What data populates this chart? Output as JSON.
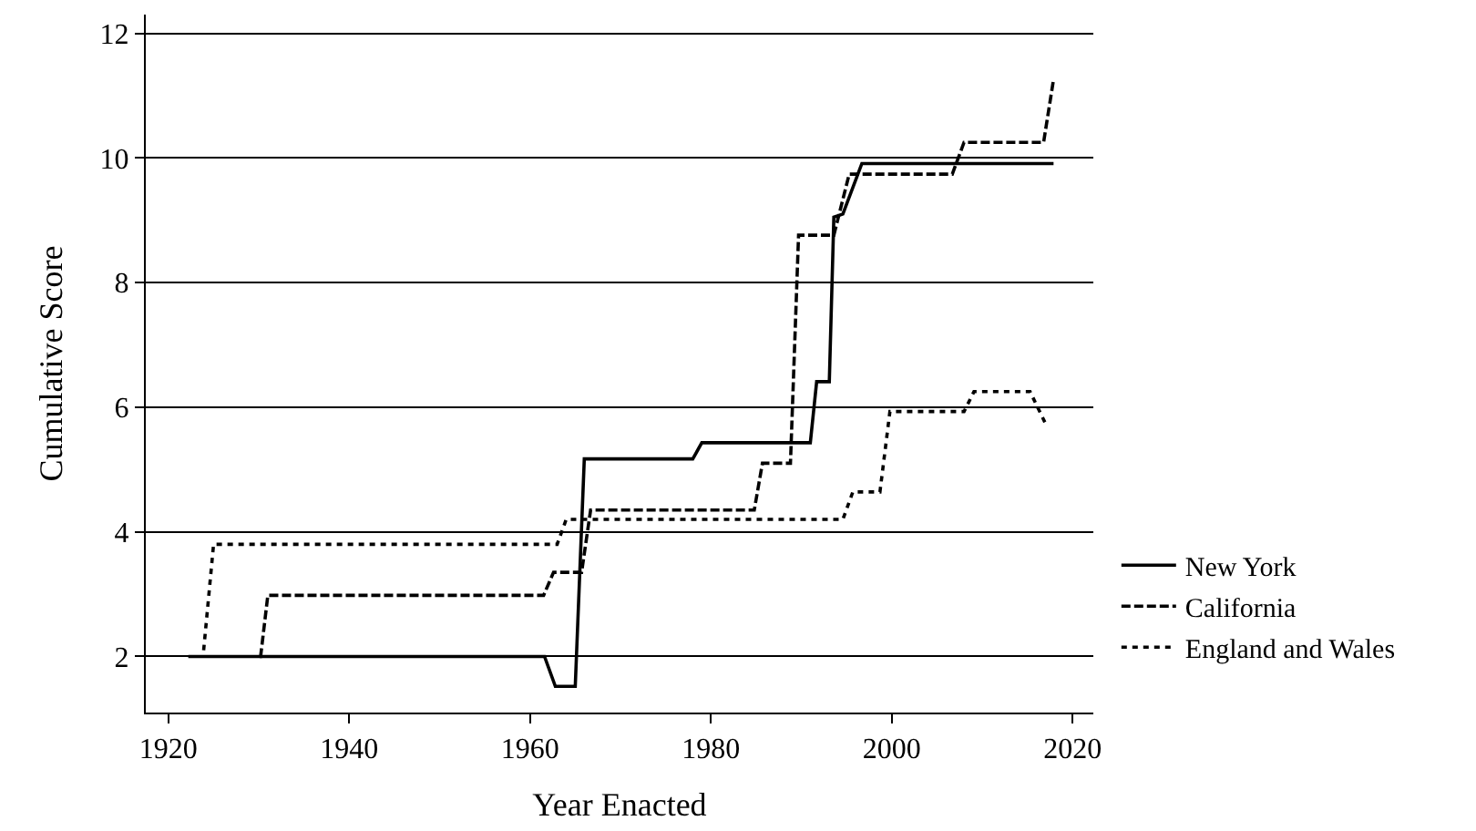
{
  "chart_data": {
    "type": "line",
    "xlabel": "Year Enacted",
    "ylabel": "Cumulative Score",
    "xlim": [
      1917.5,
      2022.3
    ],
    "ylim": [
      1.1,
      12.3
    ],
    "xticks": [
      1920,
      1940,
      1960,
      1980,
      2000,
      2020
    ],
    "yticks": [
      2,
      4,
      6,
      8,
      10,
      12
    ],
    "grid": "y",
    "legend": "right",
    "marker": "none",
    "series": [
      {
        "name": "New York",
        "color": "#000000",
        "line_style": "solid",
        "x": [
          1922.2,
          1961.6,
          1962.8,
          1965,
          1966,
          1978,
          1979,
          1991,
          1991.7,
          1993.1,
          1993.6,
          1994.6,
          1996.7,
          2017.9
        ],
        "values": [
          2,
          2,
          1.52,
          1.52,
          5.17,
          5.17,
          5.43,
          5.43,
          6.41,
          6.41,
          9.05,
          9.1,
          9.91,
          9.91
        ]
      },
      {
        "name": "California",
        "color": "#000000",
        "line_style": "dashed",
        "x": [
          1930.1,
          1930.2,
          1931,
          1961.5,
          1962.6,
          1965.7,
          1966.7,
          1984.8,
          1985.7,
          1988.8,
          1989.7,
          1993.6,
          1995.3,
          2006.7,
          2008,
          2016.8,
          2017.9
        ],
        "values": [
          2,
          2,
          2.98,
          2.98,
          3.35,
          3.35,
          4.35,
          4.35,
          5.1,
          5.1,
          8.76,
          8.76,
          9.74,
          9.74,
          10.25,
          10.25,
          11.26
        ]
      },
      {
        "name": "England and Wales",
        "color": "#000000",
        "line_style": "dotted",
        "x": [
          1923.9,
          1925,
          1963,
          1964,
          1994.6,
          1995.7,
          1998.7,
          1999.8,
          2008,
          2009.1,
          2015.3,
          2017
        ],
        "values": [
          2.1,
          3.8,
          3.8,
          4.2,
          4.2,
          4.64,
          4.64,
          5.93,
          5.93,
          6.25,
          6.25,
          5.74
        ]
      }
    ]
  }
}
